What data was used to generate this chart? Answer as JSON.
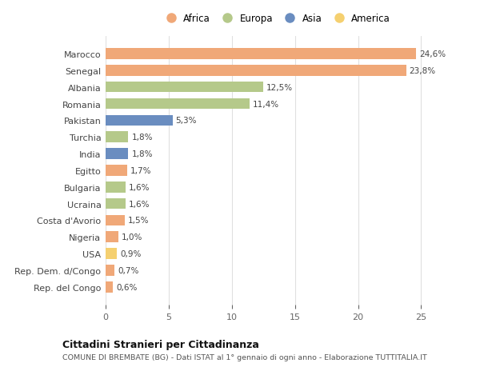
{
  "countries": [
    "Marocco",
    "Senegal",
    "Albania",
    "Romania",
    "Pakistan",
    "Turchia",
    "India",
    "Egitto",
    "Bulgaria",
    "Ucraina",
    "Costa d'Avorio",
    "Nigeria",
    "USA",
    "Rep. Dem. d/Congo",
    "Rep. del Congo"
  ],
  "values": [
    24.6,
    23.8,
    12.5,
    11.4,
    5.3,
    1.8,
    1.8,
    1.7,
    1.6,
    1.6,
    1.5,
    1.0,
    0.9,
    0.7,
    0.6
  ],
  "labels": [
    "24,6%",
    "23,8%",
    "12,5%",
    "11,4%",
    "5,3%",
    "1,8%",
    "1,8%",
    "1,7%",
    "1,6%",
    "1,6%",
    "1,5%",
    "1,0%",
    "0,9%",
    "0,7%",
    "0,6%"
  ],
  "continents": [
    "Africa",
    "Africa",
    "Europa",
    "Europa",
    "Asia",
    "Europa",
    "Asia",
    "Africa",
    "Europa",
    "Europa",
    "Africa",
    "Africa",
    "America",
    "Africa",
    "Africa"
  ],
  "colors": {
    "Africa": "#F0A878",
    "Europa": "#B5C98A",
    "Asia": "#6A8DC0",
    "America": "#F5D070"
  },
  "legend_order": [
    "Africa",
    "Europa",
    "Asia",
    "America"
  ],
  "title": "Cittadini Stranieri per Cittadinanza",
  "subtitle": "COMUNE DI BREMBATE (BG) - Dati ISTAT al 1° gennaio di ogni anno - Elaborazione TUTTITALIA.IT",
  "xlim": [
    0,
    27
  ],
  "xticks": [
    0,
    5,
    10,
    15,
    20,
    25
  ],
  "background_color": "#ffffff",
  "grid_color": "#e0e0e0",
  "bar_height": 0.65
}
